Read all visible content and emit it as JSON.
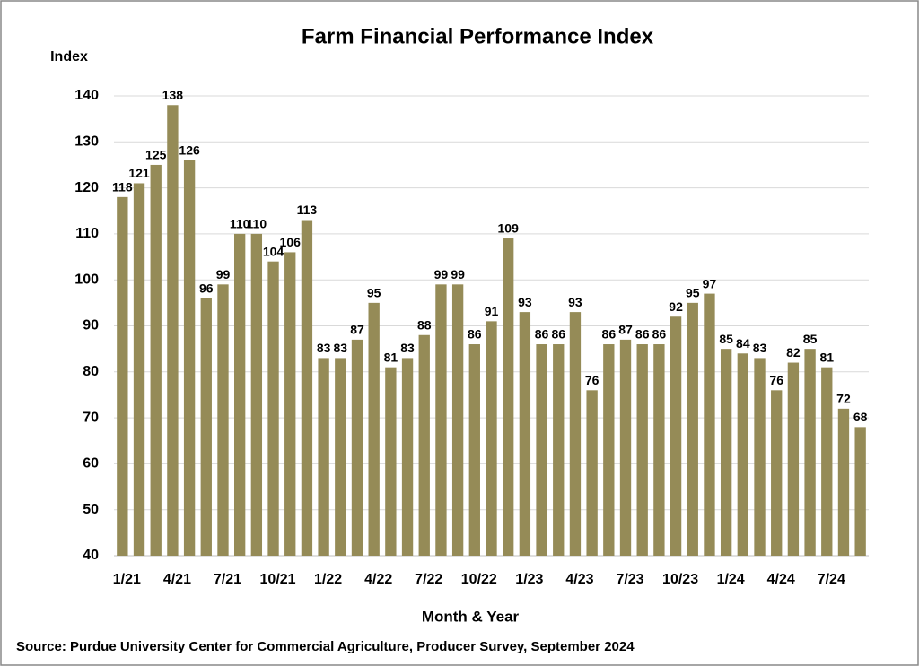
{
  "chart_data": {
    "type": "bar",
    "title": "Farm Financial Performance Index",
    "y_label": "Index",
    "x_label": "Month & Year",
    "source": "Source: Purdue University Center for Commercial Agriculture, Producer Survey, September 2024",
    "categories": [
      "1/21",
      null,
      null,
      "4/21",
      null,
      null,
      "7/21",
      null,
      null,
      "10/21",
      null,
      null,
      "1/22",
      null,
      null,
      "4/22",
      null,
      null,
      "7/22",
      null,
      null,
      "10/22",
      null,
      null,
      "1/23",
      null,
      null,
      "4/23",
      null,
      null,
      "7/23",
      null,
      null,
      "10/23",
      null,
      null,
      "1/24",
      null,
      null,
      "4/24",
      null,
      null,
      "7/24",
      null,
      null
    ],
    "values": [
      118,
      121,
      125,
      138,
      126,
      96,
      99,
      110,
      110,
      104,
      106,
      113,
      83,
      83,
      87,
      95,
      81,
      83,
      88,
      99,
      99,
      86,
      91,
      109,
      93,
      86,
      86,
      93,
      76,
      86,
      87,
      86,
      86,
      92,
      95,
      97,
      85,
      84,
      83,
      76,
      82,
      85,
      81,
      72,
      68
    ],
    "color": "#958b57",
    "ylim": [
      40,
      140
    ],
    "yticks": [
      40,
      50,
      60,
      70,
      80,
      90,
      100,
      110,
      120,
      130,
      140
    ],
    "grid": true
  }
}
